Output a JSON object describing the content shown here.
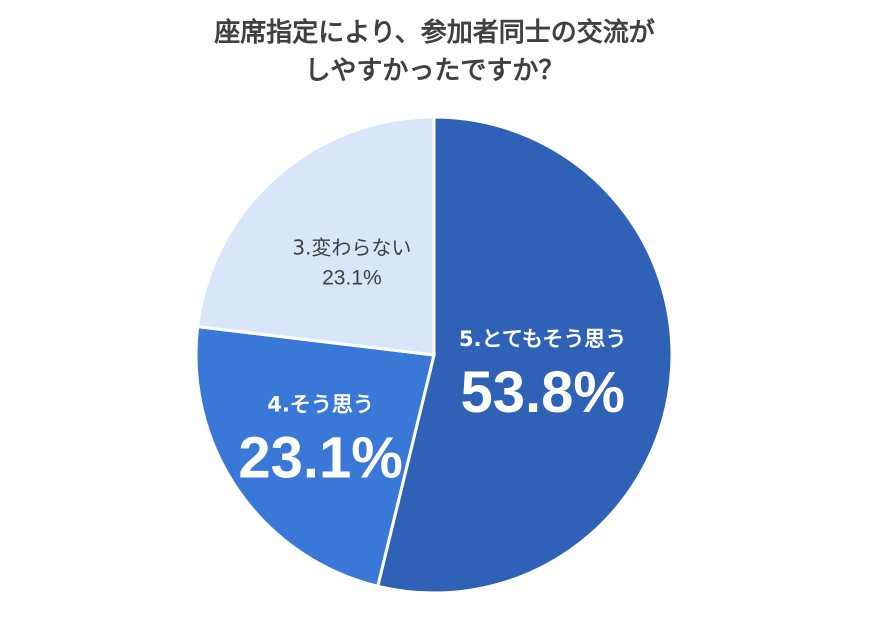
{
  "chart_data": {
    "type": "pie",
    "title_lines": [
      "座席指定により、参加者同士の交流が",
      "しやすかったですか？"
    ],
    "slices": [
      {
        "label": "5.とてもそう思う",
        "value": 53.8,
        "value_label": "53.8%",
        "color": "#2f62b6",
        "label_style": "large"
      },
      {
        "label": "4.そう思う",
        "value": 23.1,
        "value_label": "23.1%",
        "color": "#3a78d7",
        "label_style": "large"
      },
      {
        "label": "3.変わらない",
        "value": 23.1,
        "value_label": "23.1%",
        "color": "#d9e6f9",
        "label_style": "small"
      }
    ],
    "start": "12 o'clock",
    "direction": "clockwise"
  }
}
